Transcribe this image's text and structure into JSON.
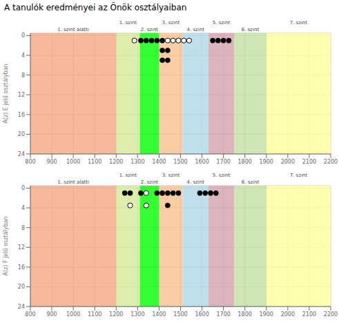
{
  "chart_data": [
    {
      "type": "scatter",
      "title": "A tanulók eredményei az Önök osztályaiban",
      "ylabel": "A(z) E jelű osztályban",
      "xlim": [
        800,
        2200
      ],
      "xticks": [
        800,
        900,
        1000,
        1100,
        1200,
        1300,
        1400,
        1500,
        1600,
        1700,
        1800,
        1900,
        2000,
        2100,
        2200
      ],
      "ylim": [
        24,
        -0.5
      ],
      "yticks": [
        0,
        4,
        8,
        12,
        16,
        20,
        24
      ],
      "grid": true,
      "bands": [
        {
          "from": 800,
          "to": 1200,
          "label": "1. szint alatti",
          "color": "#F4A882"
        },
        {
          "from": 1200,
          "to": 1310,
          "label": "1. szint",
          "color": "#D4E896"
        },
        {
          "from": 1310,
          "to": 1400,
          "label": "2. szint",
          "color": "#00FF00"
        },
        {
          "from": 1400,
          "to": 1510,
          "label": "3. szint",
          "color": "#F9C090"
        },
        {
          "from": 1510,
          "to": 1630,
          "label": "4. szint",
          "color": "#ADD8E6"
        },
        {
          "from": 1630,
          "to": 1750,
          "label": "5. szint",
          "color": "#D4A0AE"
        },
        {
          "from": 1750,
          "to": 1900,
          "label": "6. szint",
          "color": "#C0E0A0"
        },
        {
          "from": 1900,
          "to": 2200,
          "label": "7. szint",
          "color": "#FFFF99"
        }
      ],
      "series": [
        {
          "marker": "filled",
          "x": [
            1315,
            1340,
            1365,
            1390,
            1415,
            1415,
            1440,
            1415,
            1440,
            1650,
            1675,
            1700,
            1725
          ],
          "y": [
            1.0,
            1.0,
            1.0,
            1.0,
            1.0,
            3.0,
            3.0,
            5.0,
            5.0,
            1.0,
            1.0,
            1.0,
            1.0
          ]
        },
        {
          "marker": "open",
          "x": [
            1285,
            1440,
            1465,
            1490,
            1515,
            1540
          ],
          "y": [
            1.0,
            1.0,
            1.0,
            1.0,
            1.0,
            1.0
          ]
        }
      ]
    },
    {
      "type": "scatter",
      "ylabel": "A(z) F jelű osztályban",
      "xlim": [
        800,
        2200
      ],
      "xticks": [
        800,
        900,
        1000,
        1100,
        1200,
        1300,
        1400,
        1500,
        1600,
        1700,
        1800,
        1900,
        2000,
        2100,
        2200
      ],
      "ylim": [
        24,
        -0.5
      ],
      "yticks": [
        0,
        4,
        8,
        12,
        16,
        20,
        24
      ],
      "grid": true,
      "bands": [
        {
          "from": 800,
          "to": 1200,
          "label": "1. szint alatti",
          "color": "#F4A882"
        },
        {
          "from": 1200,
          "to": 1310,
          "label": "1. szint",
          "color": "#D4E896"
        },
        {
          "from": 1310,
          "to": 1400,
          "label": "2. szint",
          "color": "#00FF00"
        },
        {
          "from": 1400,
          "to": 1510,
          "label": "3. szint",
          "color": "#F9C090"
        },
        {
          "from": 1510,
          "to": 1630,
          "label": "4. szint",
          "color": "#ADD8E6"
        },
        {
          "from": 1630,
          "to": 1750,
          "label": "5. szint",
          "color": "#D4A0AE"
        },
        {
          "from": 1750,
          "to": 1900,
          "label": "6. szint",
          "color": "#C0E0A0"
        },
        {
          "from": 1900,
          "to": 2200,
          "label": "7. szint",
          "color": "#FFFF99"
        }
      ],
      "series": [
        {
          "marker": "filled",
          "x": [
            1240,
            1265,
            1315,
            1390,
            1415,
            1440,
            1440,
            1465,
            1490,
            1590,
            1615,
            1640,
            1665
          ],
          "y": [
            1.0,
            1.0,
            1.0,
            1.0,
            1.0,
            1.0,
            3.5,
            1.0,
            1.0,
            1.0,
            1.0,
            1.0,
            1.0
          ]
        },
        {
          "marker": "open",
          "x": [
            1265,
            1340,
            1340
          ],
          "y": [
            3.5,
            1.0,
            3.5
          ]
        }
      ]
    }
  ]
}
